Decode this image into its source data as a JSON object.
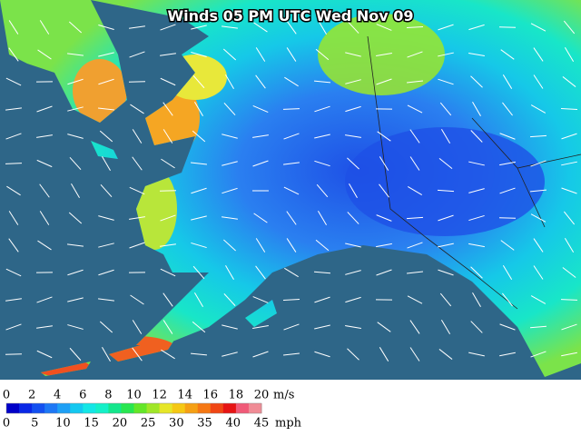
{
  "title": "Winds 05 PM UTC Wed Nov 09",
  "legend": {
    "ms": {
      "labels": [
        0,
        2,
        4,
        6,
        8,
        10,
        12,
        14,
        16,
        18,
        20
      ],
      "unit": "m/s"
    },
    "mph": {
      "labels": [
        0,
        5,
        10,
        15,
        20,
        25,
        30,
        35,
        40,
        45
      ],
      "unit": "mph"
    }
  }
}
